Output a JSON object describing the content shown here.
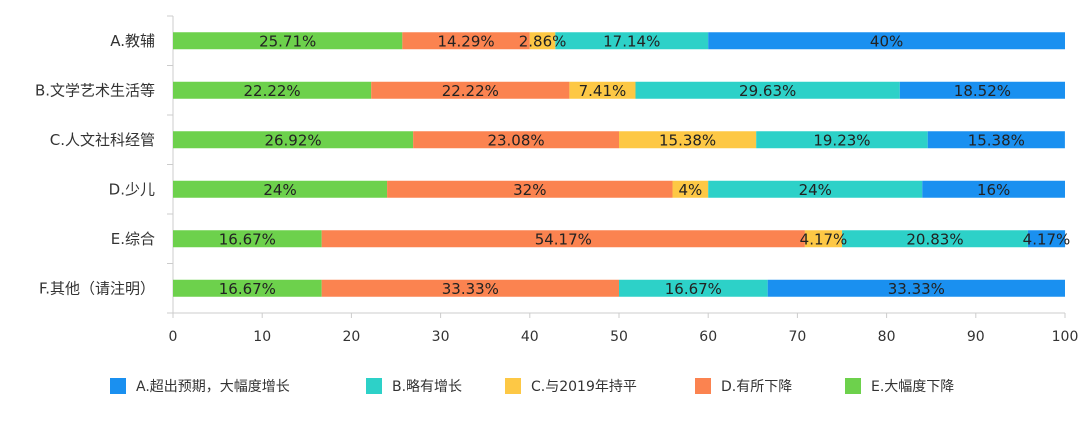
{
  "chart_data": {
    "type": "bar",
    "orientation": "horizontal",
    "stacked": true,
    "title": "",
    "xlabel": "",
    "ylabel": "",
    "xlim": [
      0,
      100
    ],
    "x_ticks": [
      "0",
      "10",
      "20",
      "30",
      "40",
      "50",
      "60",
      "70",
      "80",
      "90",
      "100"
    ],
    "legend_placement": "bottom",
    "grid": false,
    "categories": [
      "A.教辅",
      "B.文学艺术生活等",
      "C.人文社科经管",
      "D.少儿",
      "E.综合",
      "F.其他（请注明）"
    ],
    "series": [
      {
        "name": "E.大幅度下降",
        "color": "#6dd14c",
        "values": [
          25.71,
          22.22,
          26.92,
          24,
          16.67,
          16.67
        ],
        "labels": [
          "25.71%",
          "22.22%",
          "26.92%",
          "24%",
          "16.67%",
          "16.67%"
        ]
      },
      {
        "name": "D.有所下降",
        "color": "#fb8350",
        "values": [
          14.29,
          22.22,
          23.08,
          32,
          54.17,
          33.33
        ],
        "labels": [
          "14.29%",
          "22.22%",
          "23.08%",
          "32%",
          "54.17%",
          "33.33%"
        ]
      },
      {
        "name": "C.与2019年持平",
        "color": "#fdc845",
        "values": [
          2.86,
          7.41,
          15.38,
          4,
          4.17,
          0
        ],
        "labels": [
          "2.86%",
          "7.41%",
          "15.38%",
          "4%",
          "4.17%",
          ""
        ]
      },
      {
        "name": "B.略有增长",
        "color": "#2dd1c8",
        "values": [
          17.14,
          29.63,
          19.23,
          24,
          20.83,
          16.67
        ],
        "labels": [
          "17.14%",
          "29.63%",
          "19.23%",
          "24%",
          "20.83%",
          "16.67%"
        ]
      },
      {
        "name": "A.超出预期，大幅度增长",
        "color": "#1a90f0",
        "values": [
          40,
          18.52,
          15.38,
          16,
          4.17,
          33.33
        ],
        "labels": [
          "40%",
          "18.52%",
          "15.38%",
          "16%",
          "4.17%",
          "33.33%"
        ]
      }
    ],
    "legend_order": [
      4,
      3,
      2,
      1,
      0
    ]
  }
}
